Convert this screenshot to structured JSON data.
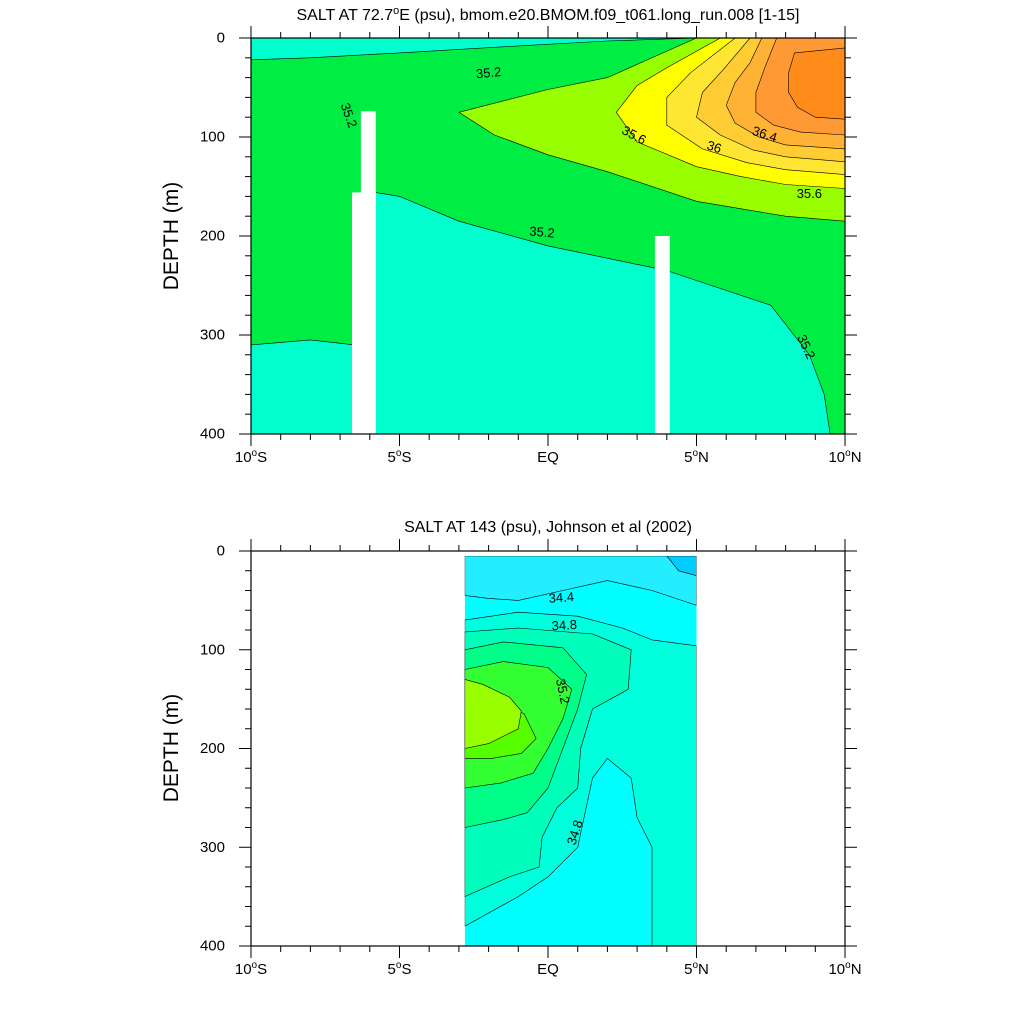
{
  "chart_data": [
    {
      "type": "contour",
      "title": "SALT AT  72.7°E (psu), bmom.e20.BMOM.f09_t061.long_run.008 [1-15]",
      "title_parts": {
        "lead": "SALT AT  72.7",
        "sup": "o",
        "tail": "E (psu), bmom.e20.BMOM.f09_t061.long_run.008 [1-15]"
      },
      "xlabel": "",
      "ylabel": "DEPTH (m)",
      "xlim": [
        -10,
        10
      ],
      "ylim": [
        400,
        0
      ],
      "y_ticks": [
        {
          "value": 0,
          "label": "0"
        },
        {
          "value": 100,
          "label": "100"
        },
        {
          "value": 200,
          "label": "200"
        },
        {
          "value": 300,
          "label": "300"
        },
        {
          "value": 400,
          "label": "400"
        }
      ],
      "x_ticks": [
        {
          "value": -10,
          "num": "10",
          "sup": "o",
          "suf": "S"
        },
        {
          "value": -5,
          "num": "5",
          "sup": "o",
          "suf": "S"
        },
        {
          "value": 0,
          "num": "EQ",
          "sup": "",
          "suf": ""
        },
        {
          "value": 5,
          "num": "5",
          "sup": "o",
          "suf": "N"
        },
        {
          "value": 10,
          "num": "10",
          "sup": "o",
          "suf": "N"
        }
      ],
      "contour_interval": 0.2,
      "legend": "none",
      "regions": [
        {
          "level": "35.0-35.2",
          "color": "#00ffcc",
          "points": [
            [
              -10,
              0
            ],
            [
              10,
              0
            ],
            [
              10,
              400
            ],
            [
              -10,
              400
            ]
          ]
        },
        {
          "level": "35.2-35.4",
          "color": "#00ee44",
          "points": [
            [
              -10,
              22
            ],
            [
              -8,
              20
            ],
            [
              -5,
              15
            ],
            [
              -1,
              8
            ],
            [
              2,
              3
            ],
            [
              5,
              0
            ],
            [
              10,
              0
            ],
            [
              10,
              400
            ],
            [
              9.5,
              400
            ],
            [
              9.3,
              360
            ],
            [
              8.8,
              320
            ],
            [
              7.5,
              270
            ],
            [
              4,
              235
            ],
            [
              0,
              210
            ],
            [
              -3,
              185
            ],
            [
              -5,
              160
            ],
            [
              -6,
              155
            ],
            [
              -6.5,
              200
            ],
            [
              -6.5,
              310
            ],
            [
              -8,
              305
            ],
            [
              -10,
              310
            ]
          ]
        },
        {
          "level": "35.4-35.6",
          "color": "#99ff00",
          "points": [
            [
              5,
              0
            ],
            [
              10,
              0
            ],
            [
              10,
              185
            ],
            [
              8,
              180
            ],
            [
              5,
              165
            ],
            [
              2,
              135
            ],
            [
              0,
              118
            ],
            [
              -1.8,
              98
            ],
            [
              -3,
              75
            ],
            [
              0,
              52
            ],
            [
              2,
              40
            ]
          ]
        },
        {
          "level": "35.6-35.8",
          "color": "#ffff00",
          "points": [
            [
              5.8,
              0
            ],
            [
              10,
              0
            ],
            [
              10,
              152
            ],
            [
              8,
              148
            ],
            [
              6.5,
              140
            ],
            [
              5,
              130
            ],
            [
              3,
              105
            ],
            [
              2.3,
              75
            ],
            [
              3,
              48
            ],
            [
              4,
              30
            ]
          ]
        },
        {
          "level": "35.8-36.0",
          "color": "#ffe633",
          "points": [
            [
              6.3,
              0
            ],
            [
              10,
              0
            ],
            [
              10,
              138
            ],
            [
              8,
              133
            ],
            [
              6.7,
              126
            ],
            [
              5.2,
              112
            ],
            [
              4,
              88
            ],
            [
              4,
              60
            ],
            [
              4.8,
              35
            ]
          ]
        },
        {
          "level": "36.0-36.2",
          "color": "#ffcc33",
          "points": [
            [
              6.8,
              0
            ],
            [
              10,
              0
            ],
            [
              10,
              125
            ],
            [
              8,
              120
            ],
            [
              6.9,
              113
            ],
            [
              5.8,
              98
            ],
            [
              5,
              80
            ],
            [
              5.2,
              55
            ],
            [
              5.9,
              32
            ]
          ]
        },
        {
          "level": "36.2-36.4",
          "color": "#ffb233",
          "points": [
            [
              7.2,
              0
            ],
            [
              10,
              0
            ],
            [
              10,
              112
            ],
            [
              8,
              108
            ],
            [
              7.1,
              100
            ],
            [
              6.3,
              86
            ],
            [
              6,
              68
            ],
            [
              6.3,
              45
            ],
            [
              6.8,
              25
            ]
          ]
        },
        {
          "level": "36.4-36.6",
          "color": "#ff9933",
          "points": [
            [
              7.7,
              0
            ],
            [
              10,
              0
            ],
            [
              10,
              98
            ],
            [
              8.5,
              95
            ],
            [
              7.6,
              88
            ],
            [
              7,
              75
            ],
            [
              7,
              55
            ],
            [
              7.3,
              30
            ]
          ]
        },
        {
          "level": "36.6-36.8",
          "color": "#ff8c1a",
          "points": [
            [
              8.3,
              15
            ],
            [
              10,
              10
            ],
            [
              10,
              82
            ],
            [
              9,
              80
            ],
            [
              8.4,
              70
            ],
            [
              8.1,
              55
            ],
            [
              8.1,
              35
            ]
          ]
        }
      ],
      "contour_labels": [
        {
          "text": "35.2",
          "x": -2,
          "y": 35,
          "angle": -5
        },
        {
          "text": "35.2",
          "x": -6.7,
          "y": 78,
          "angle": 70
        },
        {
          "text": "35.6",
          "x": 2.9,
          "y": 98,
          "angle": 28
        },
        {
          "text": "36",
          "x": 5.6,
          "y": 110,
          "angle": 18
        },
        {
          "text": "36.4",
          "x": 7.3,
          "y": 97,
          "angle": 18
        },
        {
          "text": "35.6",
          "x": 8.8,
          "y": 157,
          "angle": 0
        },
        {
          "text": "35.2",
          "x": -0.2,
          "y": 196,
          "angle": 5
        },
        {
          "text": "35.2",
          "x": 8.7,
          "y": 312,
          "angle": 65
        }
      ],
      "masked_columns": [
        {
          "x0": -6.3,
          "x1": -5.8,
          "y0": 74,
          "y1": 400
        },
        {
          "x0": -6.6,
          "x1": -5.8,
          "y0": 156,
          "y1": 400
        },
        {
          "x0": 3.6,
          "x1": 4.1,
          "y0": 200,
          "y1": 400
        }
      ]
    },
    {
      "type": "contour",
      "title": "SALT AT 143 (psu), Johnson et al (2002)",
      "title_parts": {
        "lead": "SALT AT 143 (psu), Johnson et al (2002)",
        "sup": "",
        "tail": ""
      },
      "xlabel": "",
      "ylabel": "DEPTH (m)",
      "xlim": [
        -10,
        10
      ],
      "ylim": [
        400,
        0
      ],
      "y_ticks": [
        {
          "value": 0,
          "label": "0"
        },
        {
          "value": 100,
          "label": "100"
        },
        {
          "value": 200,
          "label": "200"
        },
        {
          "value": 300,
          "label": "300"
        },
        {
          "value": 400,
          "label": "400"
        }
      ],
      "x_ticks": [
        {
          "value": -10,
          "num": "10",
          "sup": "o",
          "suf": "S"
        },
        {
          "value": -5,
          "num": "5",
          "sup": "o",
          "suf": "S"
        },
        {
          "value": 0,
          "num": "EQ",
          "sup": "",
          "suf": ""
        },
        {
          "value": 5,
          "num": "5",
          "sup": "o",
          "suf": "N"
        },
        {
          "value": 10,
          "num": "10",
          "sup": "o",
          "suf": "N"
        }
      ],
      "contour_interval": 0.2,
      "legend": "none",
      "data_extent": {
        "x0": -2.8,
        "x1": 5.0,
        "y0": 5,
        "y1": 400
      },
      "regions": [
        {
          "level": "34.4-34.6",
          "color": "#00ffff",
          "points": [
            [
              -2.8,
              5
            ],
            [
              5,
              5
            ],
            [
              5,
              400
            ],
            [
              -2.8,
              400
            ]
          ]
        },
        {
          "level": "34.2-34.4",
          "color": "#22eeff",
          "points": [
            [
              -2.8,
              5
            ],
            [
              4,
              5
            ],
            [
              5,
              12
            ],
            [
              5,
              55
            ],
            [
              4.5,
              50
            ],
            [
              3.5,
              40
            ],
            [
              2,
              30
            ],
            [
              0.5,
              40
            ],
            [
              -1,
              50
            ],
            [
              -2,
              48
            ],
            [
              -2.8,
              45
            ]
          ]
        },
        {
          "level": "34.0-34.2",
          "color": "#00ccff",
          "points": [
            [
              4,
              5
            ],
            [
              5,
              5
            ],
            [
              5,
              25
            ],
            [
              4.4,
              20
            ]
          ]
        },
        {
          "level": "34.6-34.8",
          "color": "#00ffdd",
          "points": [
            [
              -2.8,
              70
            ],
            [
              -1,
              62
            ],
            [
              1,
              66
            ],
            [
              2.5,
              78
            ],
            [
              3.5,
              90
            ],
            [
              5,
              96
            ],
            [
              5,
              400
            ],
            [
              3.5,
              400
            ],
            [
              3.5,
              300
            ],
            [
              3,
              270
            ],
            [
              2.8,
              230
            ],
            [
              2,
              210
            ],
            [
              1.5,
              230
            ],
            [
              1,
              300
            ],
            [
              0,
              330
            ],
            [
              -1,
              350
            ],
            [
              -2.8,
              380
            ]
          ]
        },
        {
          "level": "34.8-35.0",
          "color": "#00ffbb",
          "points": [
            [
              -2.8,
              82
            ],
            [
              -1,
              78
            ],
            [
              1.5,
              84
            ],
            [
              2.8,
              100
            ],
            [
              2.7,
              140
            ],
            [
              1.5,
              160
            ],
            [
              1.1,
              200
            ],
            [
              1,
              240
            ],
            [
              0.3,
              260
            ],
            [
              -0.2,
              290
            ],
            [
              -0.3,
              320
            ],
            [
              -1.3,
              330
            ],
            [
              -2.8,
              350
            ]
          ]
        },
        {
          "level": "35.0-35.2",
          "color": "#00ff88",
          "points": [
            [
              -2.8,
              100
            ],
            [
              -1.5,
              92
            ],
            [
              0.5,
              98
            ],
            [
              1.3,
              125
            ],
            [
              1,
              160
            ],
            [
              0.5,
              200
            ],
            [
              0,
              240
            ],
            [
              -0.7,
              265
            ],
            [
              -1.5,
              272
            ],
            [
              -2.8,
              280
            ]
          ]
        },
        {
          "level": "35.2-35.4",
          "color": "#33ff33",
          "points": [
            [
              -2.8,
              120
            ],
            [
              -1.5,
              112
            ],
            [
              0,
              118
            ],
            [
              0.8,
              140
            ],
            [
              0.5,
              170
            ],
            [
              0,
              200
            ],
            [
              -0.5,
              225
            ],
            [
              -1.6,
              235
            ],
            [
              -2.8,
              240
            ]
          ]
        },
        {
          "level": "35.4-35.6",
          "color": "#55ff00",
          "points": [
            [
              -2.8,
              165
            ],
            [
              -1.8,
              150
            ],
            [
              -0.8,
              165
            ],
            [
              -0.4,
              190
            ],
            [
              -0.9,
              205
            ],
            [
              -1.9,
              210
            ],
            [
              -2.8,
              210
            ]
          ]
        },
        {
          "level": "35.6-35.8",
          "color": "#99ff00",
          "points": [
            [
              -2.8,
              130
            ],
            [
              -2.2,
              135
            ],
            [
              -1.3,
              148
            ],
            [
              -0.9,
              162
            ],
            [
              -1,
              180
            ],
            [
              -2,
              195
            ],
            [
              -2.8,
              200
            ]
          ]
        }
      ],
      "contour_labels": [
        {
          "text": "34.4",
          "x": 0.45,
          "y": 47,
          "angle": -4
        },
        {
          "text": "34.8",
          "x": 0.55,
          "y": 75,
          "angle": -3
        },
        {
          "text": "35.2",
          "x": 0.5,
          "y": 142,
          "angle": 78
        },
        {
          "text": "34.8",
          "x": 0.9,
          "y": 285,
          "angle": -72
        }
      ],
      "masked_columns": []
    }
  ]
}
